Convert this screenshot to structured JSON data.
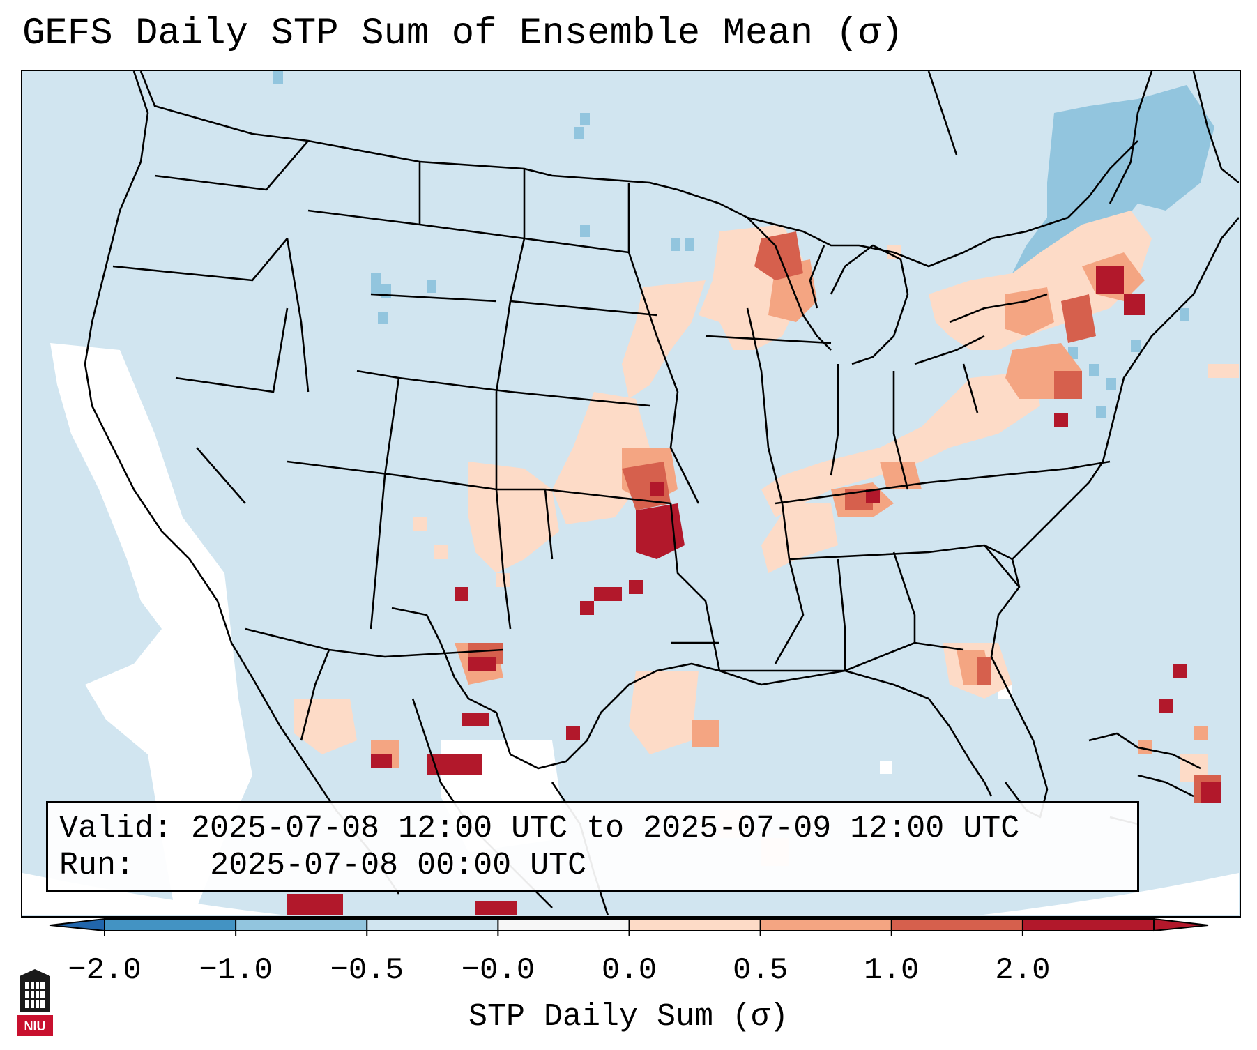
{
  "title": "GEFS Daily STP Sum of Ensemble Mean (σ)",
  "info": {
    "valid_label": "Valid:",
    "valid_value": "2025-07-08 12:00 UTC to 2025-07-09 12:00 UTC",
    "run_label": "Run:",
    "run_value": "2025-07-08 00:00 UTC"
  },
  "colorbar": {
    "title": "STP Daily Sum (σ)",
    "ticks": [
      "−2.0",
      "−1.0",
      "−0.5",
      "−0.0",
      "0.0",
      "0.5",
      "1.0",
      "2.0"
    ],
    "colors": [
      "#4393c3",
      "#92c5de",
      "#d1e5f0",
      "#f7f7f7",
      "#fddbc7",
      "#f4a582",
      "#d6604d",
      "#b2182b"
    ],
    "under_color": "#2166ac",
    "over_color": "#b2182b"
  },
  "map": {
    "ocean_color": "#d1e5f0",
    "outside_color": "#ffffff",
    "border_color": "#000000"
  },
  "logo": {
    "text": "NIU",
    "color": "#c8102e"
  }
}
